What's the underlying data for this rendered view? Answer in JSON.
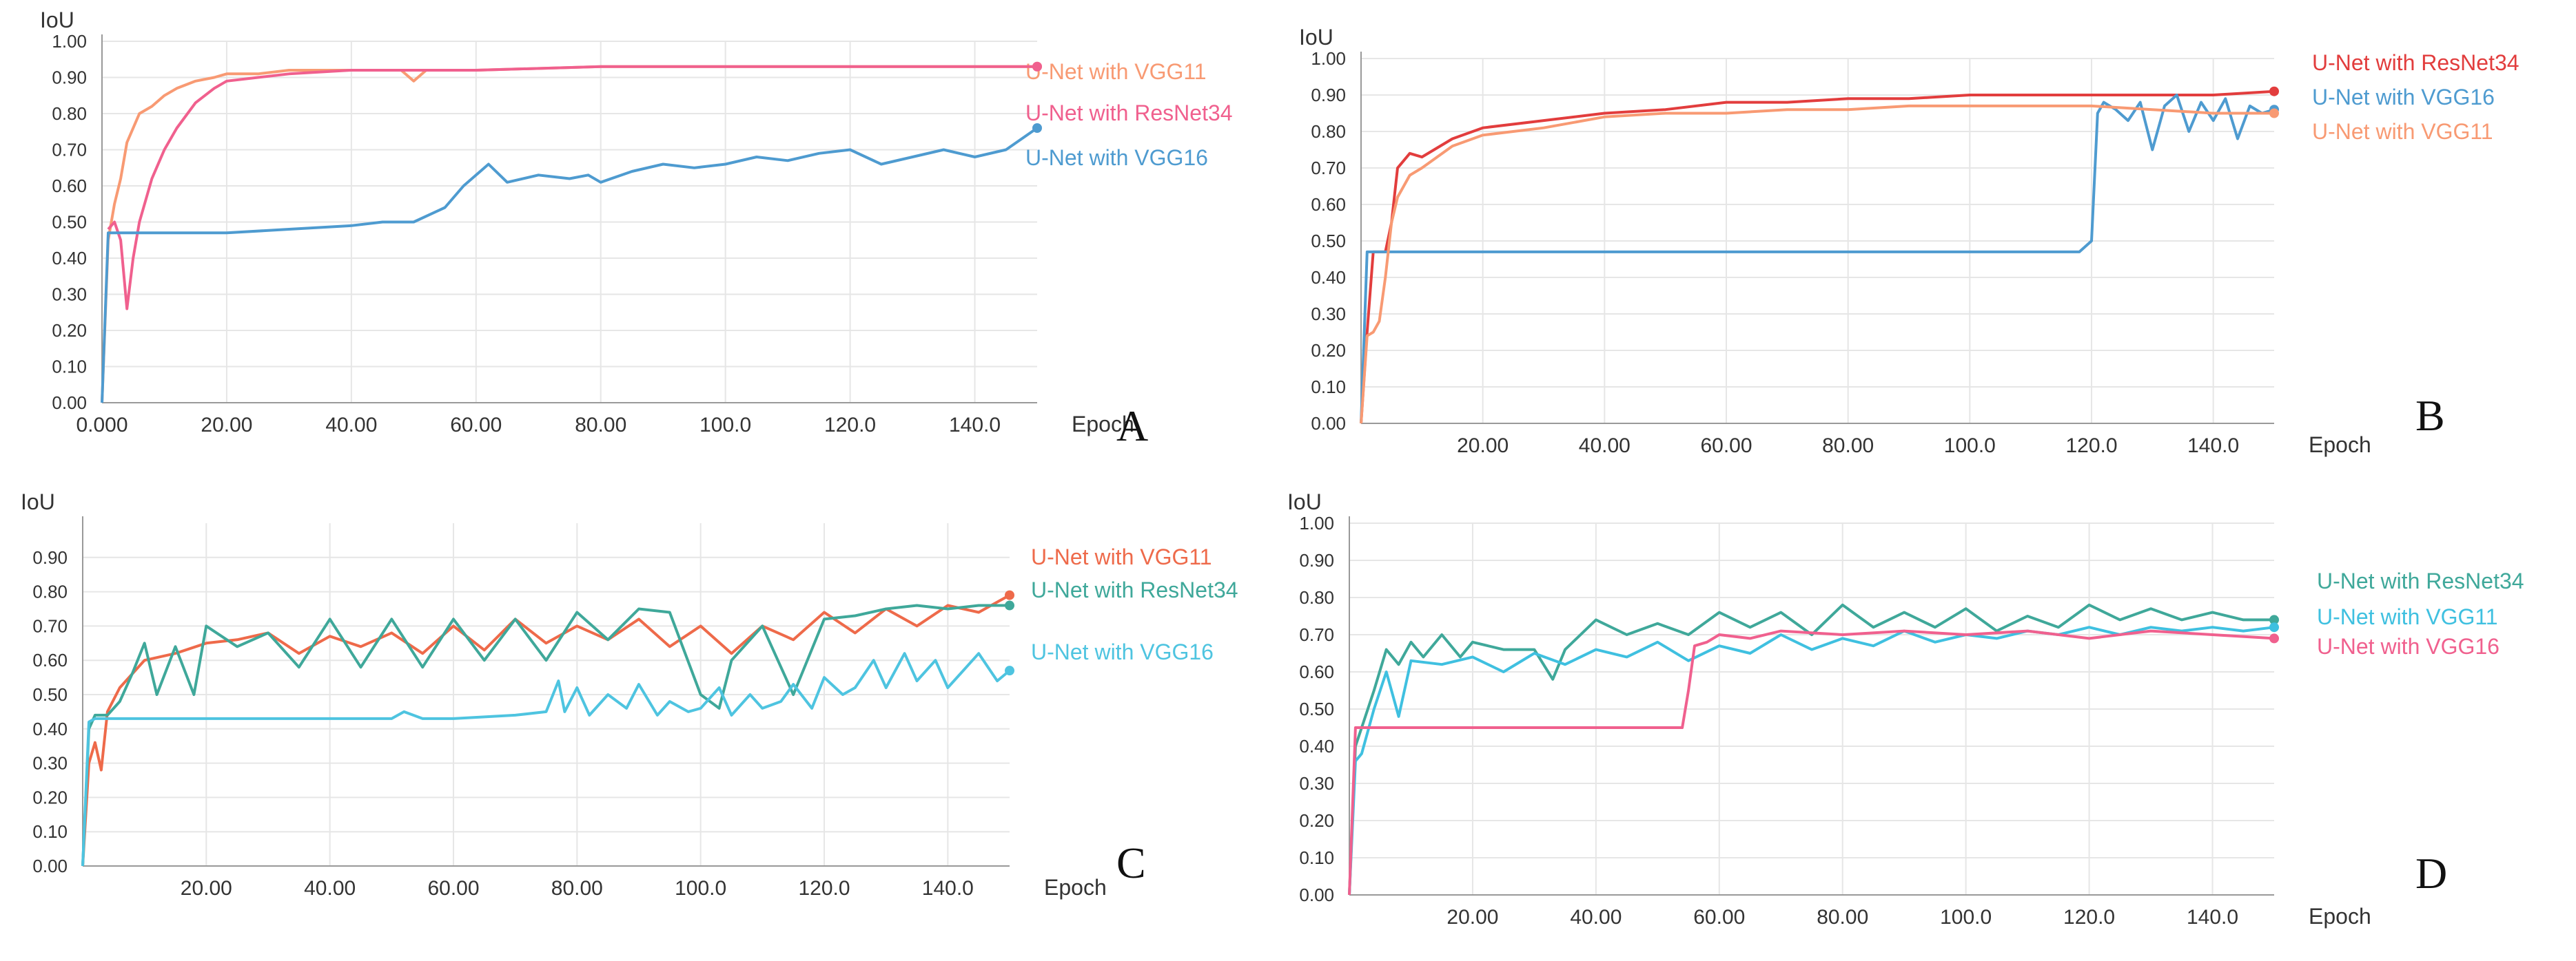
{
  "chart_data": [
    {
      "panel": "A",
      "type": "line",
      "ylabel": "IoU",
      "xlabel": "Epoch",
      "xlim": [
        0,
        150
      ],
      "ylim": [
        0,
        1.0
      ],
      "xticks": [
        "0.000",
        "20.00",
        "40.00",
        "60.00",
        "80.00",
        "100.0",
        "120.0",
        "140.0"
      ],
      "xtick_values": [
        0,
        20,
        40,
        60,
        80,
        100,
        120,
        140
      ],
      "yticks": [
        "0.00",
        "0.10",
        "0.20",
        "0.30",
        "0.40",
        "0.50",
        "0.60",
        "0.70",
        "0.80",
        "0.90",
        "1.00"
      ],
      "grid": true,
      "legend": "right",
      "series": [
        {
          "name": "U-Net with VGG11",
          "color": "#f89a73",
          "x": [
            0,
            1,
            2,
            3,
            4,
            6,
            8,
            10,
            12,
            15,
            18,
            20,
            25,
            30,
            40,
            48,
            50,
            52,
            60,
            80,
            100,
            120,
            140,
            150
          ],
          "y": [
            0.0,
            0.45,
            0.55,
            0.62,
            0.72,
            0.8,
            0.82,
            0.85,
            0.87,
            0.89,
            0.9,
            0.91,
            0.91,
            0.92,
            0.92,
            0.92,
            0.89,
            0.92,
            0.92,
            0.93,
            0.93,
            0.93,
            0.93,
            0.93
          ]
        },
        {
          "name": "U-Net with ResNet34",
          "color": "#f0608e",
          "x": [
            1,
            2,
            3,
            4,
            5,
            6,
            8,
            10,
            12,
            15,
            18,
            20,
            25,
            30,
            40,
            60,
            80,
            100,
            120,
            140,
            150
          ],
          "y": [
            0.48,
            0.5,
            0.45,
            0.26,
            0.4,
            0.5,
            0.62,
            0.7,
            0.76,
            0.83,
            0.87,
            0.89,
            0.9,
            0.91,
            0.92,
            0.92,
            0.93,
            0.93,
            0.93,
            0.93,
            0.93
          ]
        },
        {
          "name": "U-Net with VGG16",
          "color": "#4e9bd0",
          "x": [
            0,
            1,
            2,
            10,
            20,
            30,
            40,
            45,
            50,
            55,
            58,
            60,
            62,
            65,
            70,
            75,
            78,
            80,
            85,
            90,
            95,
            100,
            105,
            110,
            115,
            120,
            125,
            130,
            135,
            140,
            145,
            150
          ],
          "y": [
            0.0,
            0.47,
            0.47,
            0.47,
            0.47,
            0.48,
            0.49,
            0.5,
            0.5,
            0.54,
            0.6,
            0.63,
            0.66,
            0.61,
            0.63,
            0.62,
            0.63,
            0.61,
            0.64,
            0.66,
            0.65,
            0.66,
            0.68,
            0.67,
            0.69,
            0.7,
            0.66,
            0.68,
            0.7,
            0.68,
            0.7,
            0.76
          ]
        }
      ]
    },
    {
      "panel": "B",
      "type": "line",
      "ylabel": "IoU",
      "xlabel": "Epoch",
      "xlim": [
        0,
        150
      ],
      "ylim": [
        0,
        1.0
      ],
      "xticks": [
        "20.00",
        "40.00",
        "60.00",
        "80.00",
        "100.0",
        "120.0",
        "140.0"
      ],
      "xtick_values": [
        20,
        40,
        60,
        80,
        100,
        120,
        140
      ],
      "yticks": [
        "0.00",
        "0.10",
        "0.20",
        "0.30",
        "0.40",
        "0.50",
        "0.60",
        "0.70",
        "0.80",
        "0.90",
        "1.00"
      ],
      "grid": true,
      "legend": "right",
      "series": [
        {
          "name": "U-Net with ResNet34",
          "color": "#e23d3d",
          "x": [
            0,
            1,
            2,
            3,
            4,
            5,
            6,
            8,
            10,
            15,
            20,
            30,
            40,
            50,
            60,
            70,
            80,
            90,
            100,
            110,
            120,
            130,
            140,
            150
          ],
          "y": [
            0.0,
            0.25,
            0.47,
            0.47,
            0.47,
            0.55,
            0.7,
            0.74,
            0.73,
            0.78,
            0.81,
            0.83,
            0.85,
            0.86,
            0.88,
            0.88,
            0.89,
            0.89,
            0.9,
            0.9,
            0.9,
            0.9,
            0.9,
            0.91
          ]
        },
        {
          "name": "U-Net with VGG16",
          "color": "#4e9bd0",
          "x": [
            0,
            1,
            2,
            10,
            40,
            80,
            100,
            118,
            120,
            121,
            122,
            124,
            126,
            128,
            130,
            132,
            134,
            136,
            138,
            140,
            142,
            144,
            146,
            148,
            150
          ],
          "y": [
            0.0,
            0.47,
            0.47,
            0.47,
            0.47,
            0.47,
            0.47,
            0.47,
            0.5,
            0.85,
            0.88,
            0.86,
            0.83,
            0.88,
            0.75,
            0.87,
            0.9,
            0.8,
            0.88,
            0.83,
            0.89,
            0.78,
            0.87,
            0.85,
            0.86
          ]
        },
        {
          "name": "U-Net with VGG11",
          "color": "#f89a73",
          "x": [
            0,
            1,
            2,
            3,
            4,
            5,
            6,
            8,
            10,
            15,
            20,
            30,
            40,
            50,
            60,
            70,
            80,
            90,
            100,
            110,
            120,
            130,
            140,
            150
          ],
          "y": [
            0.0,
            0.24,
            0.25,
            0.28,
            0.4,
            0.55,
            0.62,
            0.68,
            0.7,
            0.76,
            0.79,
            0.81,
            0.84,
            0.85,
            0.85,
            0.86,
            0.86,
            0.87,
            0.87,
            0.87,
            0.87,
            0.86,
            0.85,
            0.85
          ]
        }
      ]
    },
    {
      "panel": "C",
      "type": "line",
      "ylabel": "IoU",
      "xlabel": "Epoch",
      "xlim": [
        0,
        150
      ],
      "ylim": [
        0,
        1.0
      ],
      "xticks": [
        "20.00",
        "40.00",
        "60.00",
        "80.00",
        "100.0",
        "120.0",
        "140.0"
      ],
      "xtick_values": [
        20,
        40,
        60,
        80,
        100,
        120,
        140
      ],
      "yticks": [
        "0.00",
        "0.10",
        "0.20",
        "0.30",
        "0.40",
        "0.50",
        "0.60",
        "0.70",
        "0.80",
        "0.90"
      ],
      "grid": true,
      "legend": "right",
      "series": [
        {
          "name": "U-Net with VGG11",
          "color": "#ee6a4a",
          "x": [
            0,
            1,
            2,
            3,
            4,
            6,
            8,
            10,
            15,
            20,
            25,
            30,
            35,
            40,
            45,
            50,
            55,
            60,
            65,
            70,
            75,
            80,
            85,
            90,
            95,
            100,
            105,
            110,
            115,
            120,
            125,
            130,
            135,
            140,
            145,
            150
          ],
          "y": [
            0.0,
            0.3,
            0.36,
            0.28,
            0.45,
            0.52,
            0.56,
            0.6,
            0.62,
            0.65,
            0.66,
            0.68,
            0.62,
            0.67,
            0.64,
            0.68,
            0.62,
            0.7,
            0.63,
            0.72,
            0.65,
            0.7,
            0.66,
            0.72,
            0.64,
            0.7,
            0.62,
            0.7,
            0.66,
            0.74,
            0.68,
            0.75,
            0.7,
            0.76,
            0.74,
            0.79
          ]
        },
        {
          "name": "U-Net with ResNet34",
          "color": "#3fa89a",
          "x": [
            0,
            1,
            2,
            4,
            6,
            8,
            10,
            12,
            15,
            18,
            20,
            25,
            30,
            35,
            40,
            45,
            50,
            55,
            60,
            65,
            70,
            75,
            80,
            85,
            90,
            95,
            100,
            103,
            105,
            110,
            115,
            120,
            125,
            130,
            135,
            140,
            145,
            150
          ],
          "y": [
            0.0,
            0.4,
            0.44,
            0.44,
            0.48,
            0.56,
            0.65,
            0.5,
            0.64,
            0.5,
            0.7,
            0.64,
            0.68,
            0.58,
            0.72,
            0.58,
            0.72,
            0.58,
            0.72,
            0.6,
            0.72,
            0.6,
            0.74,
            0.66,
            0.75,
            0.74,
            0.5,
            0.46,
            0.6,
            0.7,
            0.5,
            0.72,
            0.73,
            0.75,
            0.76,
            0.75,
            0.76,
            0.76
          ]
        },
        {
          "name": "U-Net with VGG16",
          "color": "#4ec4e0",
          "x": [
            0,
            1,
            2,
            10,
            20,
            30,
            40,
            50,
            52,
            55,
            60,
            70,
            75,
            77,
            78,
            80,
            82,
            85,
            88,
            90,
            93,
            95,
            98,
            100,
            103,
            105,
            108,
            110,
            113,
            115,
            118,
            120,
            123,
            125,
            128,
            130,
            133,
            135,
            138,
            140,
            143,
            145,
            148,
            150
          ],
          "y": [
            0.0,
            0.42,
            0.43,
            0.43,
            0.43,
            0.43,
            0.43,
            0.43,
            0.45,
            0.43,
            0.43,
            0.44,
            0.45,
            0.54,
            0.45,
            0.52,
            0.44,
            0.5,
            0.46,
            0.53,
            0.44,
            0.48,
            0.45,
            0.46,
            0.52,
            0.44,
            0.5,
            0.46,
            0.48,
            0.53,
            0.46,
            0.55,
            0.5,
            0.52,
            0.6,
            0.52,
            0.62,
            0.54,
            0.6,
            0.52,
            0.58,
            0.62,
            0.54,
            0.57
          ]
        }
      ]
    },
    {
      "panel": "D",
      "type": "line",
      "ylabel": "IoU",
      "xlabel": "Epoch",
      "xlim": [
        0,
        150
      ],
      "ylim": [
        0,
        1.0
      ],
      "xticks": [
        "20.00",
        "40.00",
        "60.00",
        "80.00",
        "100.0",
        "120.0",
        "140.0"
      ],
      "xtick_values": [
        20,
        40,
        60,
        80,
        100,
        120,
        140
      ],
      "yticks": [
        "0.00",
        "0.10",
        "0.20",
        "0.30",
        "0.40",
        "0.50",
        "0.60",
        "0.70",
        "0.80",
        "0.90",
        "1.00"
      ],
      "grid": true,
      "legend": "right",
      "series": [
        {
          "name": "U-Net with ResNet34",
          "color": "#3fa89a",
          "x": [
            0,
            1,
            2,
            4,
            6,
            8,
            10,
            12,
            15,
            18,
            20,
            25,
            30,
            33,
            35,
            40,
            45,
            50,
            55,
            60,
            65,
            70,
            75,
            80,
            85,
            90,
            95,
            100,
            105,
            110,
            115,
            120,
            125,
            130,
            135,
            140,
            145,
            150
          ],
          "y": [
            0.0,
            0.4,
            0.45,
            0.55,
            0.66,
            0.62,
            0.68,
            0.64,
            0.7,
            0.64,
            0.68,
            0.66,
            0.66,
            0.58,
            0.66,
            0.74,
            0.7,
            0.73,
            0.7,
            0.76,
            0.72,
            0.76,
            0.7,
            0.78,
            0.72,
            0.76,
            0.72,
            0.77,
            0.71,
            0.75,
            0.72,
            0.78,
            0.74,
            0.77,
            0.74,
            0.76,
            0.74,
            0.74
          ]
        },
        {
          "name": "U-Net with VGG11",
          "color": "#3fc0e0",
          "x": [
            0,
            1,
            2,
            4,
            6,
            8,
            10,
            15,
            20,
            25,
            30,
            35,
            40,
            45,
            50,
            55,
            60,
            65,
            70,
            75,
            80,
            85,
            90,
            95,
            100,
            105,
            110,
            115,
            120,
            125,
            130,
            135,
            140,
            145,
            150
          ],
          "y": [
            0.0,
            0.36,
            0.38,
            0.5,
            0.6,
            0.48,
            0.63,
            0.62,
            0.64,
            0.6,
            0.65,
            0.62,
            0.66,
            0.64,
            0.68,
            0.63,
            0.67,
            0.65,
            0.7,
            0.66,
            0.69,
            0.67,
            0.71,
            0.68,
            0.7,
            0.69,
            0.71,
            0.7,
            0.72,
            0.7,
            0.72,
            0.71,
            0.72,
            0.71,
            0.72
          ]
        },
        {
          "name": "U-Net with VGG16",
          "color": "#f0608e",
          "x": [
            0,
            1,
            2,
            10,
            20,
            30,
            40,
            50,
            54,
            55,
            56,
            58,
            60,
            65,
            70,
            80,
            90,
            100,
            110,
            120,
            130,
            140,
            150
          ],
          "y": [
            0.0,
            0.45,
            0.45,
            0.45,
            0.45,
            0.45,
            0.45,
            0.45,
            0.45,
            0.55,
            0.67,
            0.68,
            0.7,
            0.69,
            0.71,
            0.7,
            0.71,
            0.7,
            0.71,
            0.69,
            0.71,
            0.7,
            0.69
          ]
        }
      ]
    }
  ]
}
